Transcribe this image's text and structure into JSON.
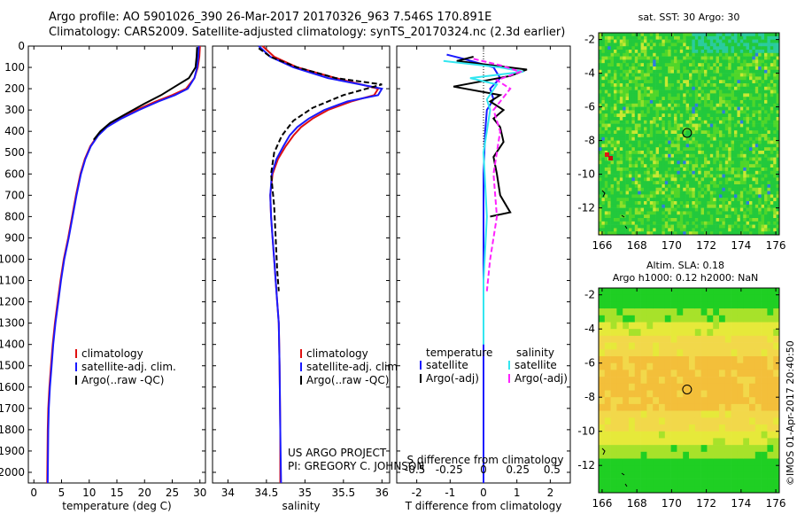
{
  "header": {
    "line1": "Argo profile: AO 5901026_390 26-Mar-2017 20170326_963 7.546S 170.891E",
    "line2": "Climatology: CARS2009. Satellite-adjusted climatology: synTS_20170324.nc (2.3d earlier)"
  },
  "colors": {
    "climatology": "#e01010",
    "satellite": "#1a1aff",
    "argo": "#000000",
    "satellite_salinity": "#33e6f0",
    "argo_salinity_adj": "#ff22ff"
  },
  "chart_data": [
    {
      "type": "line",
      "name": "temperature",
      "xlabel": "temperature (deg C)",
      "xlim": [
        -1,
        31
      ],
      "xticks": [
        0,
        5,
        10,
        15,
        20,
        25,
        30
      ],
      "ylim": [
        2050,
        0
      ],
      "yticks": [
        0,
        100,
        200,
        300,
        400,
        500,
        600,
        700,
        800,
        900,
        1000,
        1100,
        1200,
        1300,
        1400,
        1500,
        1600,
        1700,
        1800,
        1900,
        2000
      ],
      "legend": [
        "climatology",
        "satellite-adj. clim.",
        "Argo(..raw -QC)"
      ],
      "series": [
        {
          "name": "climatology",
          "x": [
            30,
            29.9,
            29.6,
            29,
            27.5,
            25,
            22,
            18.5,
            15.5,
            13,
            11.5,
            10.2,
            9.2,
            8.4,
            7.6,
            6.9,
            6.2,
            5.4,
            4.8,
            4.3,
            3.8,
            3.4,
            3.1,
            2.8,
            2.6,
            2.5,
            2.4
          ],
          "y": [
            0,
            50,
            100,
            150,
            200,
            230,
            260,
            300,
            340,
            380,
            420,
            470,
            530,
            600,
            700,
            800,
            900,
            1000,
            1100,
            1200,
            1300,
            1400,
            1500,
            1600,
            1700,
            1800,
            2050
          ]
        },
        {
          "name": "satellite-adj. clim.",
          "x": [
            29.8,
            29.7,
            29.5,
            29,
            27.8,
            25.5,
            22.5,
            19,
            15.8,
            13.2,
            11.6,
            10.3,
            9.3,
            8.5,
            7.7,
            7,
            6.3,
            5.5,
            4.9,
            4.4,
            3.9,
            3.5,
            3.2,
            2.9,
            2.7,
            2.6,
            2.5
          ],
          "y": [
            0,
            50,
            100,
            150,
            200,
            230,
            260,
            300,
            340,
            380,
            420,
            470,
            530,
            600,
            700,
            800,
            900,
            1000,
            1100,
            1200,
            1300,
            1400,
            1500,
            1600,
            1700,
            1800,
            2050
          ]
        },
        {
          "name": "Argo(..raw -QC)",
          "x": [
            29.5,
            29.4,
            29.2,
            28,
            25.5,
            23,
            20,
            16.5,
            13.8,
            12,
            10.8
          ],
          "y": [
            5,
            50,
            100,
            150,
            190,
            230,
            270,
            320,
            360,
            400,
            440
          ]
        }
      ]
    },
    {
      "type": "line",
      "name": "salinity",
      "xlabel": "salinity",
      "xlim": [
        33.8,
        36.1
      ],
      "xticks": [
        34,
        34.5,
        35,
        35.5,
        36
      ],
      "ylim": [
        2050,
        0
      ],
      "legend": [
        "climatology",
        "satellite-adj. clim.",
        "Argo(..raw -QC)"
      ],
      "series": [
        {
          "name": "climatology",
          "x": [
            34.45,
            34.6,
            34.9,
            35.4,
            35.95,
            35.9,
            35.6,
            35.3,
            35.1,
            34.95,
            34.85,
            34.75,
            34.65,
            34.58,
            34.55,
            34.56,
            34.58,
            34.6,
            34.62,
            34.64,
            34.66,
            34.67,
            34.68,
            34.68
          ],
          "y": [
            0,
            50,
            100,
            150,
            200,
            230,
            260,
            300,
            340,
            380,
            420,
            470,
            530,
            600,
            700,
            800,
            900,
            1000,
            1100,
            1200,
            1300,
            1500,
            1800,
            2050
          ]
        },
        {
          "name": "satellite-adj. clim.",
          "x": [
            34.4,
            34.55,
            34.85,
            35.3,
            36.0,
            35.95,
            35.55,
            35.25,
            35.05,
            34.9,
            34.8,
            34.72,
            34.63,
            34.57,
            34.55,
            34.56,
            34.58,
            34.6,
            34.62,
            34.64,
            34.66,
            34.67,
            34.68,
            34.69
          ],
          "y": [
            0,
            50,
            100,
            150,
            200,
            230,
            260,
            300,
            340,
            380,
            420,
            470,
            530,
            600,
            700,
            800,
            900,
            1000,
            1100,
            1200,
            1300,
            1500,
            1800,
            2050
          ]
        },
        {
          "name": "Argo(..raw -QC)",
          "x": [
            34.4,
            34.55,
            34.9,
            35.4,
            36.0,
            35.5,
            35.1,
            34.85,
            34.7,
            34.6,
            34.56,
            34.6,
            34.62,
            34.64,
            34.66
          ],
          "y": [
            10,
            50,
            100,
            150,
            180,
            230,
            290,
            350,
            420,
            500,
            600,
            750,
            900,
            1050,
            1150
          ]
        }
      ]
    },
    {
      "type": "line",
      "name": "difference",
      "xlabel": "T difference from climatology",
      "xlabel2": "S difference from climatology",
      "xlim": [
        -2.6,
        2.6
      ],
      "xticks": [
        -2,
        -1,
        0,
        1,
        2
      ],
      "xticks_s_labels": [
        "-0.5",
        "-0.25",
        "0",
        "0.25",
        "0.5"
      ],
      "ylim": [
        2050,
        0
      ],
      "legend": {
        "temperature": [
          "satellite",
          "Argo(-adj)"
        ],
        "salinity": [
          "satellite",
          "Argo(-adj)"
        ],
        "temperature_title": "temperature",
        "salinity_title": "salinity"
      },
      "series": [
        {
          "name": "temperature satellite",
          "x": [
            -1.1,
            -0.6,
            0.3,
            0.5,
            0.2,
            0.3,
            0.1,
            0.05,
            0.0,
            0.0,
            0.0,
            0.0,
            0.0
          ],
          "y": [
            40,
            60,
            100,
            150,
            200,
            250,
            300,
            400,
            600,
            800,
            1100,
            1500,
            2050
          ]
        },
        {
          "name": "temperature Argo(-adj)",
          "x": [
            -0.3,
            -0.8,
            1.3,
            0.8,
            -0.9,
            0.5,
            0.2,
            0.6,
            0.3,
            0.5,
            0.6,
            0.3,
            0.4,
            0.5,
            0.8,
            0.2
          ],
          "y": [
            50,
            70,
            110,
            140,
            190,
            230,
            260,
            300,
            340,
            380,
            450,
            520,
            600,
            700,
            780,
            800
          ]
        },
        {
          "name": "salinity satellite",
          "x": [
            -1.2,
            0.5,
            1.2,
            -0.4,
            0.4,
            0.1,
            0.2,
            0.0,
            0.1,
            0.0,
            0.0
          ],
          "y": [
            70,
            100,
            120,
            150,
            180,
            250,
            300,
            500,
            800,
            1100,
            1400
          ]
        },
        {
          "name": "salinity Argo(-adj)",
          "x": [
            -0.3,
            0.5,
            1.1,
            0.4,
            0.8,
            0.3,
            0.5,
            0.3,
            0.4,
            0.2,
            0.1
          ],
          "y": [
            60,
            90,
            120,
            160,
            200,
            300,
            400,
            600,
            800,
            1000,
            1150
          ]
        }
      ]
    },
    {
      "type": "heatmap",
      "name": "sst",
      "title": "sat. SST: 30 Argo: 30",
      "xticks": [
        166,
        168,
        170,
        172,
        174,
        176
      ],
      "yticks": [
        -2,
        -4,
        -6,
        -8,
        -10,
        -12
      ],
      "xlim": [
        165.8,
        176.2
      ],
      "ylim": [
        -13.6,
        -1.6
      ],
      "marker": [
        170.891,
        -7.546
      ]
    },
    {
      "type": "heatmap",
      "name": "sla",
      "title": "Altim. SLA: 0.18",
      "subtitle": "Argo h1000: 0.12 h2000: NaN",
      "xticks": [
        166,
        168,
        170,
        172,
        174,
        176
      ],
      "yticks": [
        -2,
        -4,
        -6,
        -8,
        -10,
        -12
      ],
      "xlim": [
        165.8,
        176.2
      ],
      "ylim": [
        -13.6,
        -1.6
      ],
      "marker": [
        170.891,
        -7.546
      ]
    }
  ],
  "annotations": {
    "project": "US ARGO PROJECT",
    "pi": "PI: GREGORY C. JOHNSON",
    "credit": "©IMOS 01-Apr-2017 20:40:50"
  }
}
